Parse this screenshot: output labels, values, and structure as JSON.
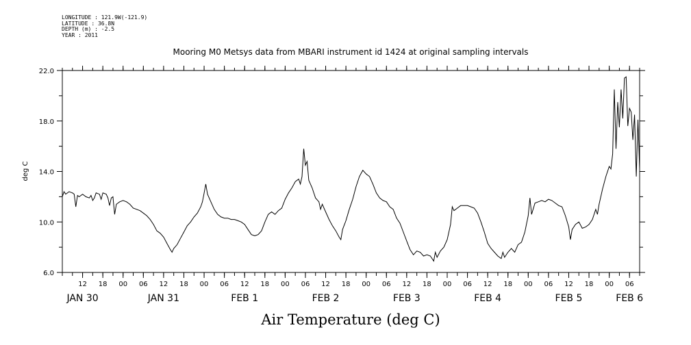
{
  "header": {
    "longitude": "LONGITUDE : 121.9W(-121.9)",
    "latitude": "LATITUDE : 36.8N",
    "depth": "DEPTH (m) : -2.5",
    "year": "YEAR : 2011"
  },
  "chart_data": {
    "type": "line",
    "title": "Mooring M0 Metsys data from MBARI instrument id 1424 at original sampling intervals",
    "xlabel": "Air Temperature (deg C)",
    "ylabel": "deg C",
    "ylim": [
      6.0,
      22.0
    ],
    "y_ticks": [
      "6.0",
      "10.0",
      "14.0",
      "18.0",
      "22.0"
    ],
    "x_axis": "hours since 2011-01-30 06:00",
    "xlim": [
      0,
      171
    ],
    "hour_ticks": [
      {
        "h": 6,
        "label": "12"
      },
      {
        "h": 12,
        "label": "18"
      },
      {
        "h": 18,
        "label": "00"
      },
      {
        "h": 24,
        "label": "06"
      },
      {
        "h": 30,
        "label": "12"
      },
      {
        "h": 36,
        "label": "18"
      },
      {
        "h": 42,
        "label": "00"
      },
      {
        "h": 48,
        "label": "06"
      },
      {
        "h": 54,
        "label": "12"
      },
      {
        "h": 60,
        "label": "18"
      },
      {
        "h": 66,
        "label": "00"
      },
      {
        "h": 72,
        "label": "06"
      },
      {
        "h": 78,
        "label": "12"
      },
      {
        "h": 84,
        "label": "18"
      },
      {
        "h": 90,
        "label": "00"
      },
      {
        "h": 96,
        "label": "06"
      },
      {
        "h": 102,
        "label": "12"
      },
      {
        "h": 108,
        "label": "18"
      },
      {
        "h": 114,
        "label": "00"
      },
      {
        "h": 120,
        "label": "06"
      },
      {
        "h": 126,
        "label": "12"
      },
      {
        "h": 132,
        "label": "18"
      },
      {
        "h": 138,
        "label": "00"
      },
      {
        "h": 144,
        "label": "06"
      },
      {
        "h": 150,
        "label": "12"
      },
      {
        "h": 156,
        "label": "18"
      },
      {
        "h": 162,
        "label": "00"
      },
      {
        "h": 168,
        "label": "06"
      }
    ],
    "day_labels": [
      {
        "h": 6,
        "label": "JAN 30"
      },
      {
        "h": 30,
        "label": "JAN 31"
      },
      {
        "h": 54,
        "label": "FEB  1"
      },
      {
        "h": 78,
        "label": "FEB  2"
      },
      {
        "h": 102,
        "label": "FEB  3"
      },
      {
        "h": 126,
        "label": "FEB  4"
      },
      {
        "h": 150,
        "label": "FEB  5"
      },
      {
        "h": 168,
        "label": "FEB  6"
      }
    ],
    "series": [
      {
        "name": "",
        "color": "#000000",
        "points": [
          [
            0,
            12.0
          ],
          [
            0.5,
            12.4
          ],
          [
            1,
            12.2
          ],
          [
            2,
            12.4
          ],
          [
            3,
            12.3
          ],
          [
            3.5,
            12.2
          ],
          [
            4,
            11.2
          ],
          [
            4.5,
            12.1
          ],
          [
            5,
            12.0
          ],
          [
            6,
            12.2
          ],
          [
            7,
            12.0
          ],
          [
            8,
            11.9
          ],
          [
            8.5,
            12.1
          ],
          [
            9,
            11.7
          ],
          [
            9.5,
            11.9
          ],
          [
            10,
            12.3
          ],
          [
            11,
            12.2
          ],
          [
            11.5,
            11.8
          ],
          [
            12,
            12.3
          ],
          [
            13,
            12.2
          ],
          [
            13.5,
            11.9
          ],
          [
            14,
            11.3
          ],
          [
            14.5,
            11.9
          ],
          [
            15,
            12.0
          ],
          [
            15.5,
            10.6
          ],
          [
            16,
            11.4
          ],
          [
            17,
            11.6
          ],
          [
            18,
            11.7
          ],
          [
            19,
            11.6
          ],
          [
            20,
            11.4
          ],
          [
            21,
            11.1
          ],
          [
            22,
            11.0
          ],
          [
            23,
            10.9
          ],
          [
            24,
            10.7
          ],
          [
            25,
            10.5
          ],
          [
            26,
            10.2
          ],
          [
            27,
            9.8
          ],
          [
            28,
            9.3
          ],
          [
            29,
            9.1
          ],
          [
            30,
            8.8
          ],
          [
            31,
            8.3
          ],
          [
            32,
            7.8
          ],
          [
            32.5,
            7.6
          ],
          [
            33,
            7.9
          ],
          [
            34,
            8.2
          ],
          [
            35,
            8.7
          ],
          [
            36,
            9.2
          ],
          [
            37,
            9.7
          ],
          [
            38,
            10.0
          ],
          [
            39,
            10.4
          ],
          [
            40,
            10.7
          ],
          [
            41,
            11.2
          ],
          [
            41.5,
            11.6
          ],
          [
            42,
            12.3
          ],
          [
            42.5,
            13.0
          ],
          [
            43,
            12.2
          ],
          [
            44,
            11.6
          ],
          [
            45,
            11.0
          ],
          [
            46,
            10.6
          ],
          [
            47,
            10.4
          ],
          [
            48,
            10.3
          ],
          [
            49,
            10.3
          ],
          [
            50,
            10.2
          ],
          [
            51,
            10.2
          ],
          [
            52,
            10.1
          ],
          [
            53,
            10.0
          ],
          [
            54,
            9.8
          ],
          [
            55,
            9.4
          ],
          [
            56,
            9.0
          ],
          [
            57,
            8.9
          ],
          [
            58,
            9.0
          ],
          [
            59,
            9.3
          ],
          [
            60,
            10.0
          ],
          [
            61,
            10.6
          ],
          [
            62,
            10.8
          ],
          [
            63,
            10.6
          ],
          [
            64,
            10.9
          ],
          [
            65,
            11.1
          ],
          [
            66,
            11.8
          ],
          [
            67,
            12.3
          ],
          [
            68,
            12.7
          ],
          [
            69,
            13.2
          ],
          [
            70,
            13.4
          ],
          [
            70.5,
            13.0
          ],
          [
            71,
            13.6
          ],
          [
            71.5,
            15.8
          ],
          [
            72,
            14.5
          ],
          [
            72.5,
            14.8
          ],
          [
            73,
            13.3
          ],
          [
            74,
            12.7
          ],
          [
            75,
            11.9
          ],
          [
            76,
            11.6
          ],
          [
            76.5,
            11.0
          ],
          [
            77,
            11.4
          ],
          [
            78,
            10.8
          ],
          [
            79,
            10.2
          ],
          [
            80,
            9.7
          ],
          [
            81,
            9.3
          ],
          [
            82,
            8.8
          ],
          [
            82.5,
            8.6
          ],
          [
            83,
            9.4
          ],
          [
            84,
            10.1
          ],
          [
            85,
            11.0
          ],
          [
            86,
            11.8
          ],
          [
            87,
            12.8
          ],
          [
            88,
            13.6
          ],
          [
            89,
            14.1
          ],
          [
            90,
            13.8
          ],
          [
            91,
            13.6
          ],
          [
            92,
            13.0
          ],
          [
            93,
            12.3
          ],
          [
            94,
            11.9
          ],
          [
            95,
            11.7
          ],
          [
            96,
            11.6
          ],
          [
            97,
            11.2
          ],
          [
            98,
            11.0
          ],
          [
            99,
            10.3
          ],
          [
            100,
            9.9
          ],
          [
            101,
            9.2
          ],
          [
            102,
            8.5
          ],
          [
            103,
            7.8
          ],
          [
            104,
            7.4
          ],
          [
            105,
            7.7
          ],
          [
            106,
            7.6
          ],
          [
            107,
            7.3
          ],
          [
            108,
            7.4
          ],
          [
            109,
            7.3
          ],
          [
            110,
            6.9
          ],
          [
            110.5,
            7.6
          ],
          [
            111,
            7.2
          ],
          [
            112,
            7.7
          ],
          [
            113,
            8.0
          ],
          [
            114,
            8.6
          ],
          [
            115,
            9.8
          ],
          [
            115.5,
            11.2
          ],
          [
            116,
            10.9
          ],
          [
            117,
            11.1
          ],
          [
            118,
            11.3
          ],
          [
            119,
            11.3
          ],
          [
            120,
            11.3
          ],
          [
            121,
            11.2
          ],
          [
            122,
            11.1
          ],
          [
            123,
            10.7
          ],
          [
            124,
            10.0
          ],
          [
            125,
            9.2
          ],
          [
            126,
            8.3
          ],
          [
            127,
            7.9
          ],
          [
            128,
            7.6
          ],
          [
            129,
            7.3
          ],
          [
            130,
            7.1
          ],
          [
            130.5,
            7.6
          ],
          [
            131,
            7.2
          ],
          [
            132,
            7.6
          ],
          [
            133,
            7.9
          ],
          [
            134,
            7.6
          ],
          [
            135,
            8.2
          ],
          [
            136,
            8.4
          ],
          [
            137,
            9.2
          ],
          [
            138,
            10.5
          ],
          [
            138.5,
            11.9
          ],
          [
            139,
            10.6
          ],
          [
            140,
            11.5
          ],
          [
            141,
            11.6
          ],
          [
            142,
            11.7
          ],
          [
            143,
            11.6
          ],
          [
            144,
            11.8
          ],
          [
            145,
            11.7
          ],
          [
            146,
            11.5
          ],
          [
            147,
            11.3
          ],
          [
            148,
            11.2
          ],
          [
            149,
            10.5
          ],
          [
            150,
            9.6
          ],
          [
            150.5,
            8.6
          ],
          [
            151,
            9.4
          ],
          [
            152,
            9.8
          ],
          [
            153,
            10.0
          ],
          [
            154,
            9.5
          ],
          [
            155,
            9.6
          ],
          [
            156,
            9.8
          ],
          [
            157,
            10.2
          ],
          [
            158,
            11.0
          ],
          [
            158.5,
            10.6
          ],
          [
            159,
            11.4
          ],
          [
            160,
            12.6
          ],
          [
            161,
            13.6
          ],
          [
            162,
            14.4
          ],
          [
            162.5,
            14.2
          ],
          [
            163,
            15.4
          ],
          [
            163.5,
            20.5
          ],
          [
            164,
            15.8
          ],
          [
            164.5,
            19.5
          ],
          [
            165,
            17.5
          ],
          [
            165.5,
            20.5
          ],
          [
            166,
            18.2
          ],
          [
            166.5,
            21.4
          ],
          [
            167,
            21.5
          ],
          [
            167.5,
            17.6
          ],
          [
            168,
            19.0
          ],
          [
            168.5,
            18.7
          ],
          [
            169,
            16.5
          ],
          [
            169.5,
            18.5
          ],
          [
            170,
            13.6
          ],
          [
            170.5,
            18.1
          ],
          [
            171,
            14.2
          ]
        ]
      }
    ]
  }
}
